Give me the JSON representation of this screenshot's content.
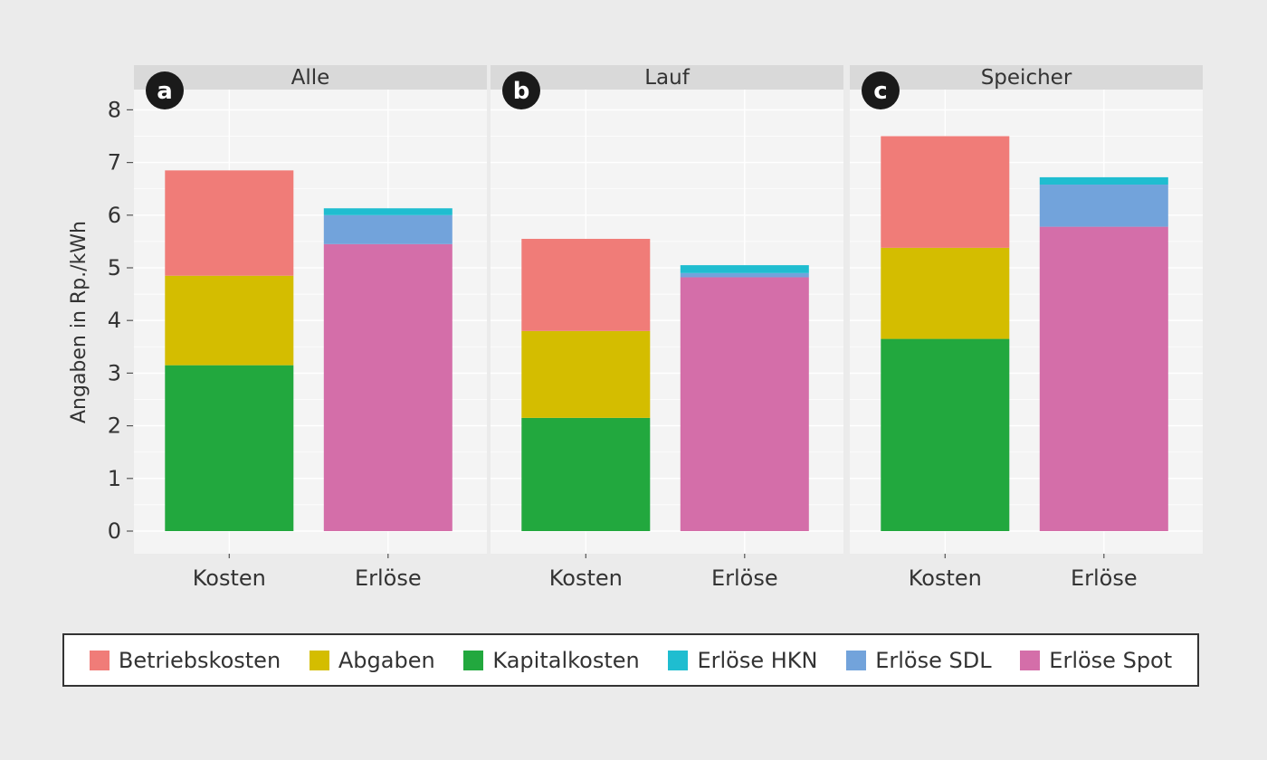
{
  "chart_data": {
    "type": "bar",
    "stacked": true,
    "ylabel": "Angaben in Rp./kWh",
    "ylim": [
      0,
      8.5
    ],
    "yticks": [
      0,
      1,
      2,
      3,
      4,
      5,
      6,
      7,
      8
    ],
    "categories": [
      "Kosten",
      "Erlöse"
    ],
    "grid": true,
    "legend_position": "bottom",
    "colors": {
      "Betriebskosten": "#f07c78",
      "Abgaben": "#d4bd00",
      "Kapitalkosten": "#22a83e",
      "Erlöse HKN": "#1fbdd0",
      "Erlöse SDL": "#72a3db",
      "Erlöse Spot": "#d46ea9"
    },
    "legend": [
      "Betriebskosten",
      "Abgaben",
      "Kapitalkosten",
      "Erlöse HKN",
      "Erlöse SDL",
      "Erlöse Spot"
    ],
    "panels": [
      {
        "letter": "a",
        "title": "Alle",
        "bars": [
          {
            "category": "Kosten",
            "segments": [
              {
                "series": "Kapitalkosten",
                "value": 3.15
              },
              {
                "series": "Abgaben",
                "value": 1.7
              },
              {
                "series": "Betriebskosten",
                "value": 2.0
              }
            ]
          },
          {
            "category": "Erlöse",
            "segments": [
              {
                "series": "Erlöse Spot",
                "value": 5.45
              },
              {
                "series": "Erlöse SDL",
                "value": 0.55
              },
              {
                "series": "Erlöse HKN",
                "value": 0.13
              }
            ]
          }
        ]
      },
      {
        "letter": "b",
        "title": "Lauf",
        "bars": [
          {
            "category": "Kosten",
            "segments": [
              {
                "series": "Kapitalkosten",
                "value": 2.15
              },
              {
                "series": "Abgaben",
                "value": 1.65
              },
              {
                "series": "Betriebskosten",
                "value": 1.75
              }
            ]
          },
          {
            "category": "Erlöse",
            "segments": [
              {
                "series": "Erlöse Spot",
                "value": 4.82
              },
              {
                "series": "Erlöse SDL",
                "value": 0.08
              },
              {
                "series": "Erlöse HKN",
                "value": 0.15
              }
            ]
          }
        ]
      },
      {
        "letter": "c",
        "title": "Speicher",
        "bars": [
          {
            "category": "Kosten",
            "segments": [
              {
                "series": "Kapitalkosten",
                "value": 3.65
              },
              {
                "series": "Abgaben",
                "value": 1.73
              },
              {
                "series": "Betriebskosten",
                "value": 2.12
              }
            ]
          },
          {
            "category": "Erlöse",
            "segments": [
              {
                "series": "Erlöse Spot",
                "value": 5.78
              },
              {
                "series": "Erlöse SDL",
                "value": 0.8
              },
              {
                "series": "Erlöse HKN",
                "value": 0.14
              }
            ]
          }
        ]
      }
    ]
  }
}
